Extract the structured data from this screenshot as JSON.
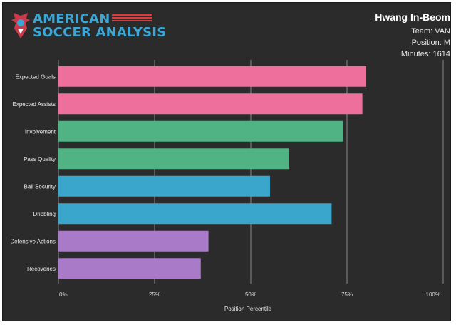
{
  "brand": {
    "line1": "AMERICAN",
    "line2": "SOCCER ANALYSIS",
    "logo_icon": "eagle-crest-icon",
    "colors": {
      "text": "#3ba7d6",
      "stripes": "#e23a3a"
    }
  },
  "player": {
    "name": "Hwang In-Beom",
    "team": "Team: VAN",
    "position": "Position: M",
    "minutes": "Minutes: 1614"
  },
  "chart_data": {
    "type": "bar",
    "orientation": "horizontal",
    "categories": [
      "Expected Goals",
      "Expected Assists",
      "Involvement",
      "Pass Quality",
      "Ball Security",
      "Dribbling",
      "Defensive Actions",
      "Recoveries"
    ],
    "values": [
      80,
      79,
      74,
      60,
      55,
      71,
      39,
      37
    ],
    "colors": [
      "#ef6f9c",
      "#ef6f9c",
      "#4fb383",
      "#4fb383",
      "#3ba6cc",
      "#3ba6cc",
      "#a87ac8",
      "#a87ac8"
    ],
    "xlabel": "Position Percentile",
    "xlim": [
      0,
      100
    ],
    "xticks": [
      0,
      25,
      50,
      75,
      100
    ],
    "xtick_labels": [
      "0%",
      "25%",
      "50%",
      "75%",
      "100%"
    ],
    "grid": true,
    "background": "#2b2b2b"
  }
}
